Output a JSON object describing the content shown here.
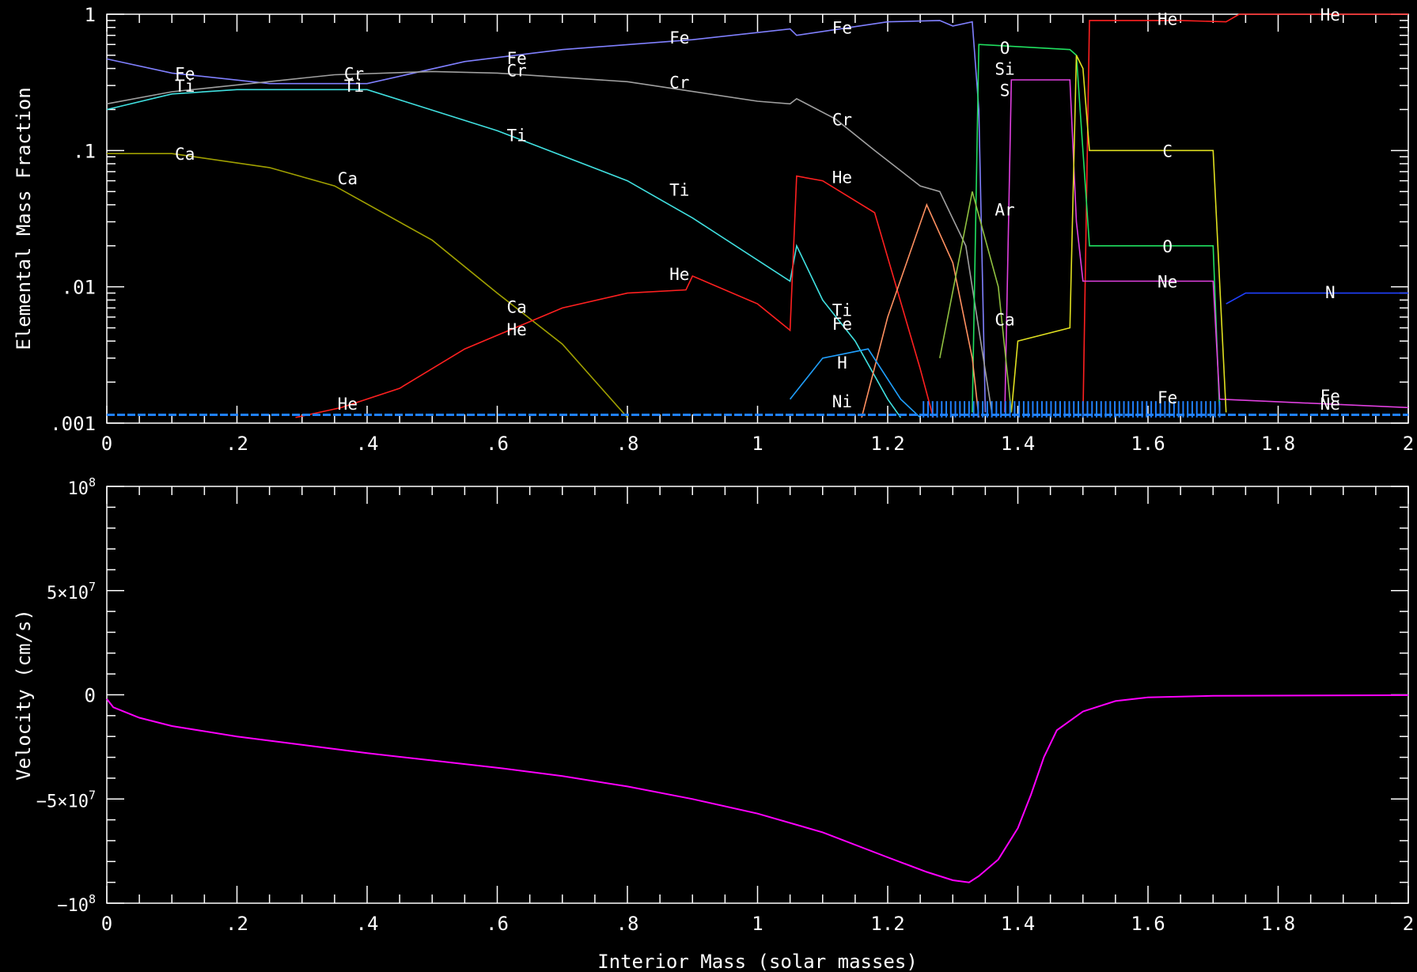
{
  "chart_data": [
    {
      "type": "line",
      "panel": "top",
      "ylabel": "Elemental Mass Fraction",
      "xlabel": "",
      "xlim": [
        0,
        2
      ],
      "ylim": [
        0.001,
        1
      ],
      "yscale": "log",
      "x_tick_labels": [
        "0",
        ".2",
        ".4",
        ".6",
        ".8",
        "1",
        "1.2",
        "1.4",
        "1.6",
        "1.8",
        "2"
      ],
      "y_ticks": [
        {
          "value": 0.001,
          "label": ".001"
        },
        {
          "value": 0.01,
          "label": ".01"
        },
        {
          "value": 0.1,
          "label": ".1"
        },
        {
          "value": 1,
          "label": "1"
        }
      ],
      "series": [
        {
          "name": "Fe",
          "color": "#8080ff",
          "points": [
            [
              0,
              0.47
            ],
            [
              0.1,
              0.37
            ],
            [
              0.25,
              0.31
            ],
            [
              0.4,
              0.31
            ],
            [
              0.55,
              0.45
            ],
            [
              0.7,
              0.55
            ],
            [
              0.9,
              0.65
            ],
            [
              1.05,
              0.78
            ],
            [
              1.06,
              0.7
            ],
            [
              1.2,
              0.88
            ],
            [
              1.28,
              0.9
            ],
            [
              1.3,
              0.82
            ],
            [
              1.33,
              0.88
            ],
            [
              1.34,
              0.2
            ],
            [
              1.35,
              0.0012
            ]
          ]
        },
        {
          "name": "Cr",
          "color": "#a0a0a0",
          "points": [
            [
              0,
              0.22
            ],
            [
              0.1,
              0.27
            ],
            [
              0.35,
              0.36
            ],
            [
              0.5,
              0.38
            ],
            [
              0.6,
              0.37
            ],
            [
              0.8,
              0.32
            ],
            [
              1.0,
              0.23
            ],
            [
              1.05,
              0.22
            ],
            [
              1.06,
              0.24
            ],
            [
              1.12,
              0.17
            ],
            [
              1.18,
              0.1
            ],
            [
              1.25,
              0.055
            ],
            [
              1.28,
              0.05
            ],
            [
              1.32,
              0.02
            ],
            [
              1.36,
              0.0012
            ]
          ]
        },
        {
          "name": "Ti",
          "color": "#40e0e0",
          "points": [
            [
              0,
              0.2
            ],
            [
              0.1,
              0.26
            ],
            [
              0.2,
              0.28
            ],
            [
              0.4,
              0.28
            ],
            [
              0.6,
              0.14
            ],
            [
              0.8,
              0.06
            ],
            [
              0.9,
              0.032
            ],
            [
              1.05,
              0.011
            ],
            [
              1.06,
              0.02
            ],
            [
              1.1,
              0.008
            ],
            [
              1.15,
              0.004
            ],
            [
              1.2,
              0.0015
            ],
            [
              1.22,
              0.0011
            ]
          ]
        },
        {
          "name": "Ca",
          "color": "#a0a000",
          "points": [
            [
              0,
              0.095
            ],
            [
              0.1,
              0.095
            ],
            [
              0.25,
              0.075
            ],
            [
              0.35,
              0.055
            ],
            [
              0.5,
              0.022
            ],
            [
              0.6,
              0.009
            ],
            [
              0.7,
              0.0038
            ],
            [
              0.8,
              0.0011
            ]
          ]
        },
        {
          "name": "He",
          "color": "#ff2020",
          "points": [
            [
              0.29,
              0.0011
            ],
            [
              0.36,
              0.0013
            ],
            [
              0.45,
              0.0018
            ],
            [
              0.55,
              0.0035
            ],
            [
              0.7,
              0.007
            ],
            [
              0.8,
              0.009
            ],
            [
              0.89,
              0.0095
            ],
            [
              0.9,
              0.012
            ],
            [
              1.0,
              0.0075
            ],
            [
              1.05,
              0.0048
            ],
            [
              1.06,
              0.065
            ],
            [
              1.1,
              0.06
            ],
            [
              1.18,
              0.035
            ],
            [
              1.25,
              0.0025
            ],
            [
              1.27,
              0.0011
            ]
          ]
        },
        {
          "name": "He-outer",
          "color": "#ff2020",
          "points": [
            [
              1.5,
              0.0011
            ],
            [
              1.51,
              0.9
            ],
            [
              1.65,
              0.9
            ],
            [
              1.72,
              0.88
            ],
            [
              1.74,
              1.0
            ],
            [
              2,
              1.0
            ]
          ]
        },
        {
          "name": "O",
          "color": "#20e060",
          "points": [
            [
              1.33,
              0.0012
            ],
            [
              1.34,
              0.6
            ],
            [
              1.48,
              0.55
            ],
            [
              1.49,
              0.5
            ],
            [
              1.51,
              0.02
            ],
            [
              1.7,
              0.02
            ],
            [
              1.71,
              0.0012
            ]
          ]
        },
        {
          "name": "Si",
          "color": "#e040e0",
          "points": [
            [
              1.38,
              0.0012
            ],
            [
              1.39,
              0.33
            ],
            [
              1.48,
              0.33
            ],
            [
              1.49,
              0.03
            ],
            [
              1.5,
              0.011
            ],
            [
              1.7,
              0.011
            ],
            [
              1.71,
              0.0015
            ],
            [
              2,
              0.0013
            ]
          ]
        },
        {
          "name": "C",
          "color": "#e0e020",
          "points": [
            [
              1.39,
              0.0012
            ],
            [
              1.4,
              0.004
            ],
            [
              1.48,
              0.005
            ],
            [
              1.49,
              0.5
            ],
            [
              1.5,
              0.4
            ],
            [
              1.51,
              0.1
            ],
            [
              1.7,
              0.1
            ],
            [
              1.72,
              0.0012
            ]
          ]
        },
        {
          "name": "N",
          "color": "#2040ff",
          "points": [
            [
              1.72,
              0.0075
            ],
            [
              1.75,
              0.009
            ],
            [
              2,
              0.009
            ]
          ]
        },
        {
          "name": "Ni",
          "color": "#ff9060",
          "points": [
            [
              1.16,
              0.0011
            ],
            [
              1.2,
              0.006
            ],
            [
              1.26,
              0.04
            ],
            [
              1.3,
              0.015
            ],
            [
              1.33,
              0.003
            ],
            [
              1.34,
              0.0011
            ]
          ]
        },
        {
          "name": "H",
          "color": "#20a0ff",
          "points": [
            [
              1.05,
              0.0015
            ],
            [
              1.1,
              0.003
            ],
            [
              1.17,
              0.0035
            ],
            [
              1.22,
              0.0015
            ],
            [
              1.25,
              0.0011
            ]
          ]
        },
        {
          "name": "Ar",
          "color": "#90c040",
          "points": [
            [
              1.28,
              0.003
            ],
            [
              1.33,
              0.05
            ],
            [
              1.37,
              0.01
            ],
            [
              1.39,
              0.0012
            ]
          ]
        }
      ],
      "annotations": [
        {
          "text": "Fe",
          "x": 0.12,
          "y": 0.37
        },
        {
          "text": "Ti",
          "x": 0.12,
          "y": 0.3
        },
        {
          "text": "Cr",
          "x": 0.38,
          "y": 0.37
        },
        {
          "text": "Ti",
          "x": 0.38,
          "y": 0.3
        },
        {
          "text": "Fe",
          "x": 0.63,
          "y": 0.48
        },
        {
          "text": "Cr",
          "x": 0.63,
          "y": 0.39
        },
        {
          "text": "Fe",
          "x": 0.88,
          "y": 0.68
        },
        {
          "text": "Cr",
          "x": 0.88,
          "y": 0.32
        },
        {
          "text": "Ti",
          "x": 0.63,
          "y": 0.13
        },
        {
          "text": "Fe",
          "x": 1.13,
          "y": 0.8
        },
        {
          "text": "Cr",
          "x": 1.13,
          "y": 0.17
        },
        {
          "text": "Ca",
          "x": 0.12,
          "y": 0.095
        },
        {
          "text": "Ca",
          "x": 0.37,
          "y": 0.063
        },
        {
          "text": "Ti",
          "x": 0.88,
          "y": 0.052
        },
        {
          "text": "He",
          "x": 1.13,
          "y": 0.064
        },
        {
          "text": "Ca",
          "x": 0.63,
          "y": 0.0072
        },
        {
          "text": "He",
          "x": 0.63,
          "y": 0.0049
        },
        {
          "text": "He",
          "x": 0.88,
          "y": 0.0125
        },
        {
          "text": "He",
          "x": 0.37,
          "y": 0.0014
        },
        {
          "text": "Ti",
          "x": 1.13,
          "y": 0.0068
        },
        {
          "text": "Fe",
          "x": 1.13,
          "y": 0.0054
        },
        {
          "text": "H",
          "x": 1.13,
          "y": 0.0028
        },
        {
          "text": "Ni",
          "x": 1.13,
          "y": 0.00145
        },
        {
          "text": "O",
          "x": 1.38,
          "y": 0.57
        },
        {
          "text": "Si",
          "x": 1.38,
          "y": 0.4
        },
        {
          "text": "S",
          "x": 1.38,
          "y": 0.28
        },
        {
          "text": "Ar",
          "x": 1.38,
          "y": 0.037
        },
        {
          "text": "Ca",
          "x": 1.38,
          "y": 0.0058
        },
        {
          "text": "He",
          "x": 1.63,
          "y": 0.93
        },
        {
          "text": "He",
          "x": 1.88,
          "y": 1.0
        },
        {
          "text": "C",
          "x": 1.63,
          "y": 0.1
        },
        {
          "text": "O",
          "x": 1.63,
          "y": 0.02
        },
        {
          "text": "Ne",
          "x": 1.63,
          "y": 0.011
        },
        {
          "text": "N",
          "x": 1.88,
          "y": 0.0092
        },
        {
          "text": "Fe",
          "x": 1.63,
          "y": 0.00155
        },
        {
          "text": "Fe",
          "x": 1.88,
          "y": 0.0016
        },
        {
          "text": "Ne",
          "x": 1.88,
          "y": 0.0014
        }
      ]
    },
    {
      "type": "line",
      "panel": "bottom",
      "ylabel": "Velocity (cm/s)",
      "xlabel": "Interior Mass (solar masses)",
      "xlim": [
        0,
        2
      ],
      "ylim": [
        -100000000,
        100000000
      ],
      "x_tick_labels": [
        "0",
        ".2",
        ".4",
        ".6",
        ".8",
        "1",
        "1.2",
        "1.4",
        "1.6",
        "1.8",
        "2"
      ],
      "series": [
        {
          "name": "",
          "color": "#ff00ff",
          "points": [
            [
              0,
              -2000000
            ],
            [
              0.01,
              -6000000
            ],
            [
              0.05,
              -11000000
            ],
            [
              0.1,
              -15000000
            ],
            [
              0.2,
              -20000000
            ],
            [
              0.3,
              -24000000
            ],
            [
              0.4,
              -28000000
            ],
            [
              0.5,
              -31500000
            ],
            [
              0.6,
              -35000000
            ],
            [
              0.7,
              -39000000
            ],
            [
              0.8,
              -44000000
            ],
            [
              0.9,
              -50000000
            ],
            [
              1.0,
              -57000000
            ],
            [
              1.1,
              -66000000
            ],
            [
              1.2,
              -78000000
            ],
            [
              1.26,
              -85000000
            ],
            [
              1.3,
              -89000000
            ],
            [
              1.325,
              -90000000
            ],
            [
              1.34,
              -87000000
            ],
            [
              1.37,
              -79000000
            ],
            [
              1.4,
              -64000000
            ],
            [
              1.42,
              -48000000
            ],
            [
              1.44,
              -30000000
            ],
            [
              1.46,
              -17000000
            ],
            [
              1.5,
              -8000000
            ],
            [
              1.55,
              -3000000
            ],
            [
              1.6,
              -1200000
            ],
            [
              1.7,
              -500000
            ],
            [
              2,
              -200000
            ]
          ]
        }
      ]
    }
  ]
}
